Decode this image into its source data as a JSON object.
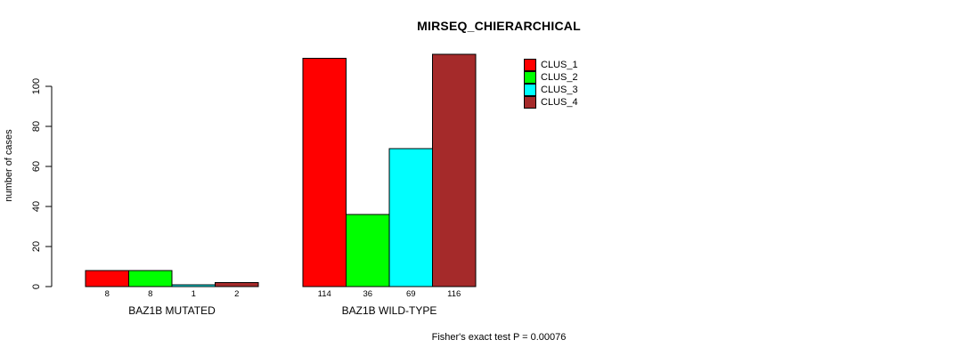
{
  "chart_data": {
    "type": "bar",
    "title": "MIRSEQ_CHIERARCHICAL",
    "xlabel": "",
    "ylabel": "number of cases",
    "yticks": [
      0,
      20,
      40,
      60,
      80,
      100
    ],
    "ylim": [
      0,
      116
    ],
    "grid": false,
    "legend_position": "top-right-inside",
    "series": [
      {
        "name": "CLUS_1",
        "color": "#ff0000"
      },
      {
        "name": "CLUS_2",
        "color": "#00ff00"
      },
      {
        "name": "CLUS_3",
        "color": "#00ffff"
      },
      {
        "name": "CLUS_4",
        "color": "#a52a2a"
      }
    ],
    "groups": [
      {
        "label": "BAZ1B MUTATED",
        "values": [
          8,
          8,
          1,
          2
        ]
      },
      {
        "label": "BAZ1B WILD-TYPE",
        "values": [
          114,
          36,
          69,
          116
        ]
      }
    ],
    "bar_border_color": "#000000",
    "axis_color": "#000000",
    "annotation": "Fisher's exact test P = 0.00076"
  }
}
